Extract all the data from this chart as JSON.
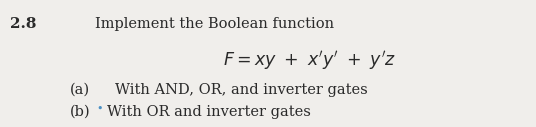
{
  "problem_number": "2.8",
  "intro_text": "Implement the Boolean function",
  "formula": "$F = xy \\ + \\ x'y' \\ + \\ y'z$",
  "part_a_label": "(a)",
  "part_a_text": "With AND, OR, and inverter gates",
  "part_b_label": "(b)",
  "part_b_bullet": "•",
  "part_b_text": "With OR and inverter gates",
  "background_color": "#f0eeeb",
  "text_color": "#2a2a2a",
  "bullet_color": "#4a90c4",
  "font_size_main": 10.5,
  "font_size_number": 11,
  "font_size_formula": 12.5,
  "font_size_bullet": 8
}
